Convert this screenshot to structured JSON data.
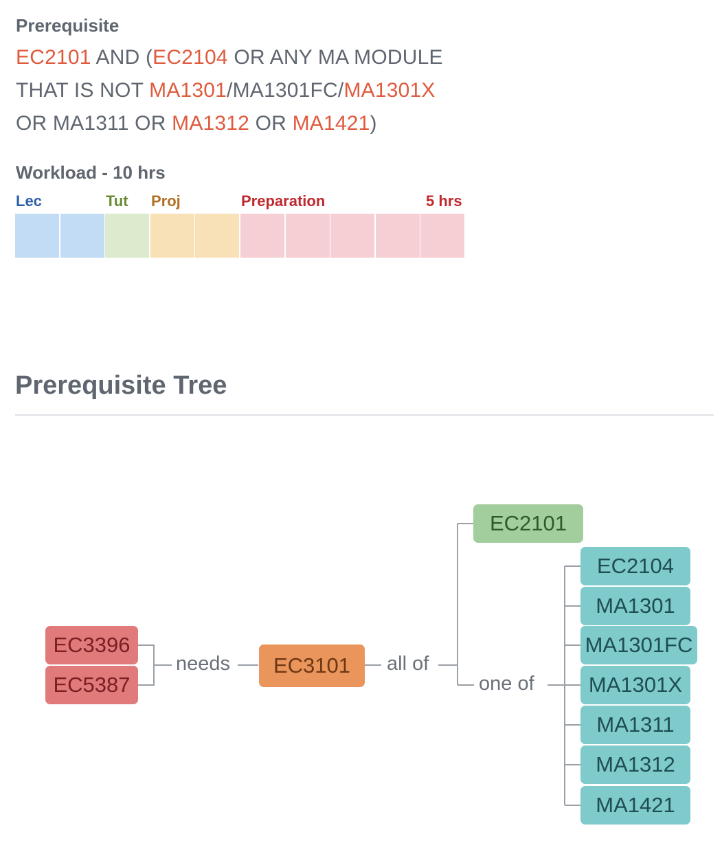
{
  "prerequisite": {
    "heading": "Prerequisite",
    "line1": [
      {
        "t": "EC2101",
        "mod": true
      },
      {
        "t": " AND (",
        "mod": false
      },
      {
        "t": "EC2104",
        "mod": true
      },
      {
        "t": " OR ANY MA MODULE",
        "mod": false
      }
    ],
    "line2": [
      {
        "t": "THAT IS NOT ",
        "mod": false
      },
      {
        "t": "MA1301",
        "mod": true
      },
      {
        "t": "/MA1301FC/",
        "mod": false
      },
      {
        "t": "MA1301X",
        "mod": true
      }
    ],
    "line3": [
      {
        "t": "OR MA1311 OR ",
        "mod": false
      },
      {
        "t": "MA1312",
        "mod": true
      },
      {
        "t": " OR ",
        "mod": false
      },
      {
        "t": "MA1421",
        "mod": true
      },
      {
        "t": ")",
        "mod": false
      }
    ]
  },
  "workload": {
    "heading": "Workload - 10 hrs",
    "lec_label": "Lec",
    "tut_label": "Tut",
    "proj_label": "Proj",
    "prep_label": "Preparation",
    "prep_hours": "5 hrs",
    "lec_hours": 2,
    "tut_hours": 1,
    "proj_hours": 2,
    "prep_hours_value": 5,
    "colors": {
      "lec": "#c3dcf6",
      "tut": "#dcebcd",
      "proj": "#f8e1b7",
      "prep": "#f6cfd4"
    }
  },
  "tree": {
    "title": "Prerequisite Tree",
    "dependents": [
      "EC3396",
      "EC5387"
    ],
    "needs_label": "needs",
    "current": "EC3101",
    "all_of_label": "all of",
    "required": "EC2101",
    "one_of_label": "one of",
    "options": [
      "EC2104",
      "MA1301",
      "MA1301FC",
      "MA1301X",
      "MA1311",
      "MA1312",
      "MA1421"
    ]
  }
}
